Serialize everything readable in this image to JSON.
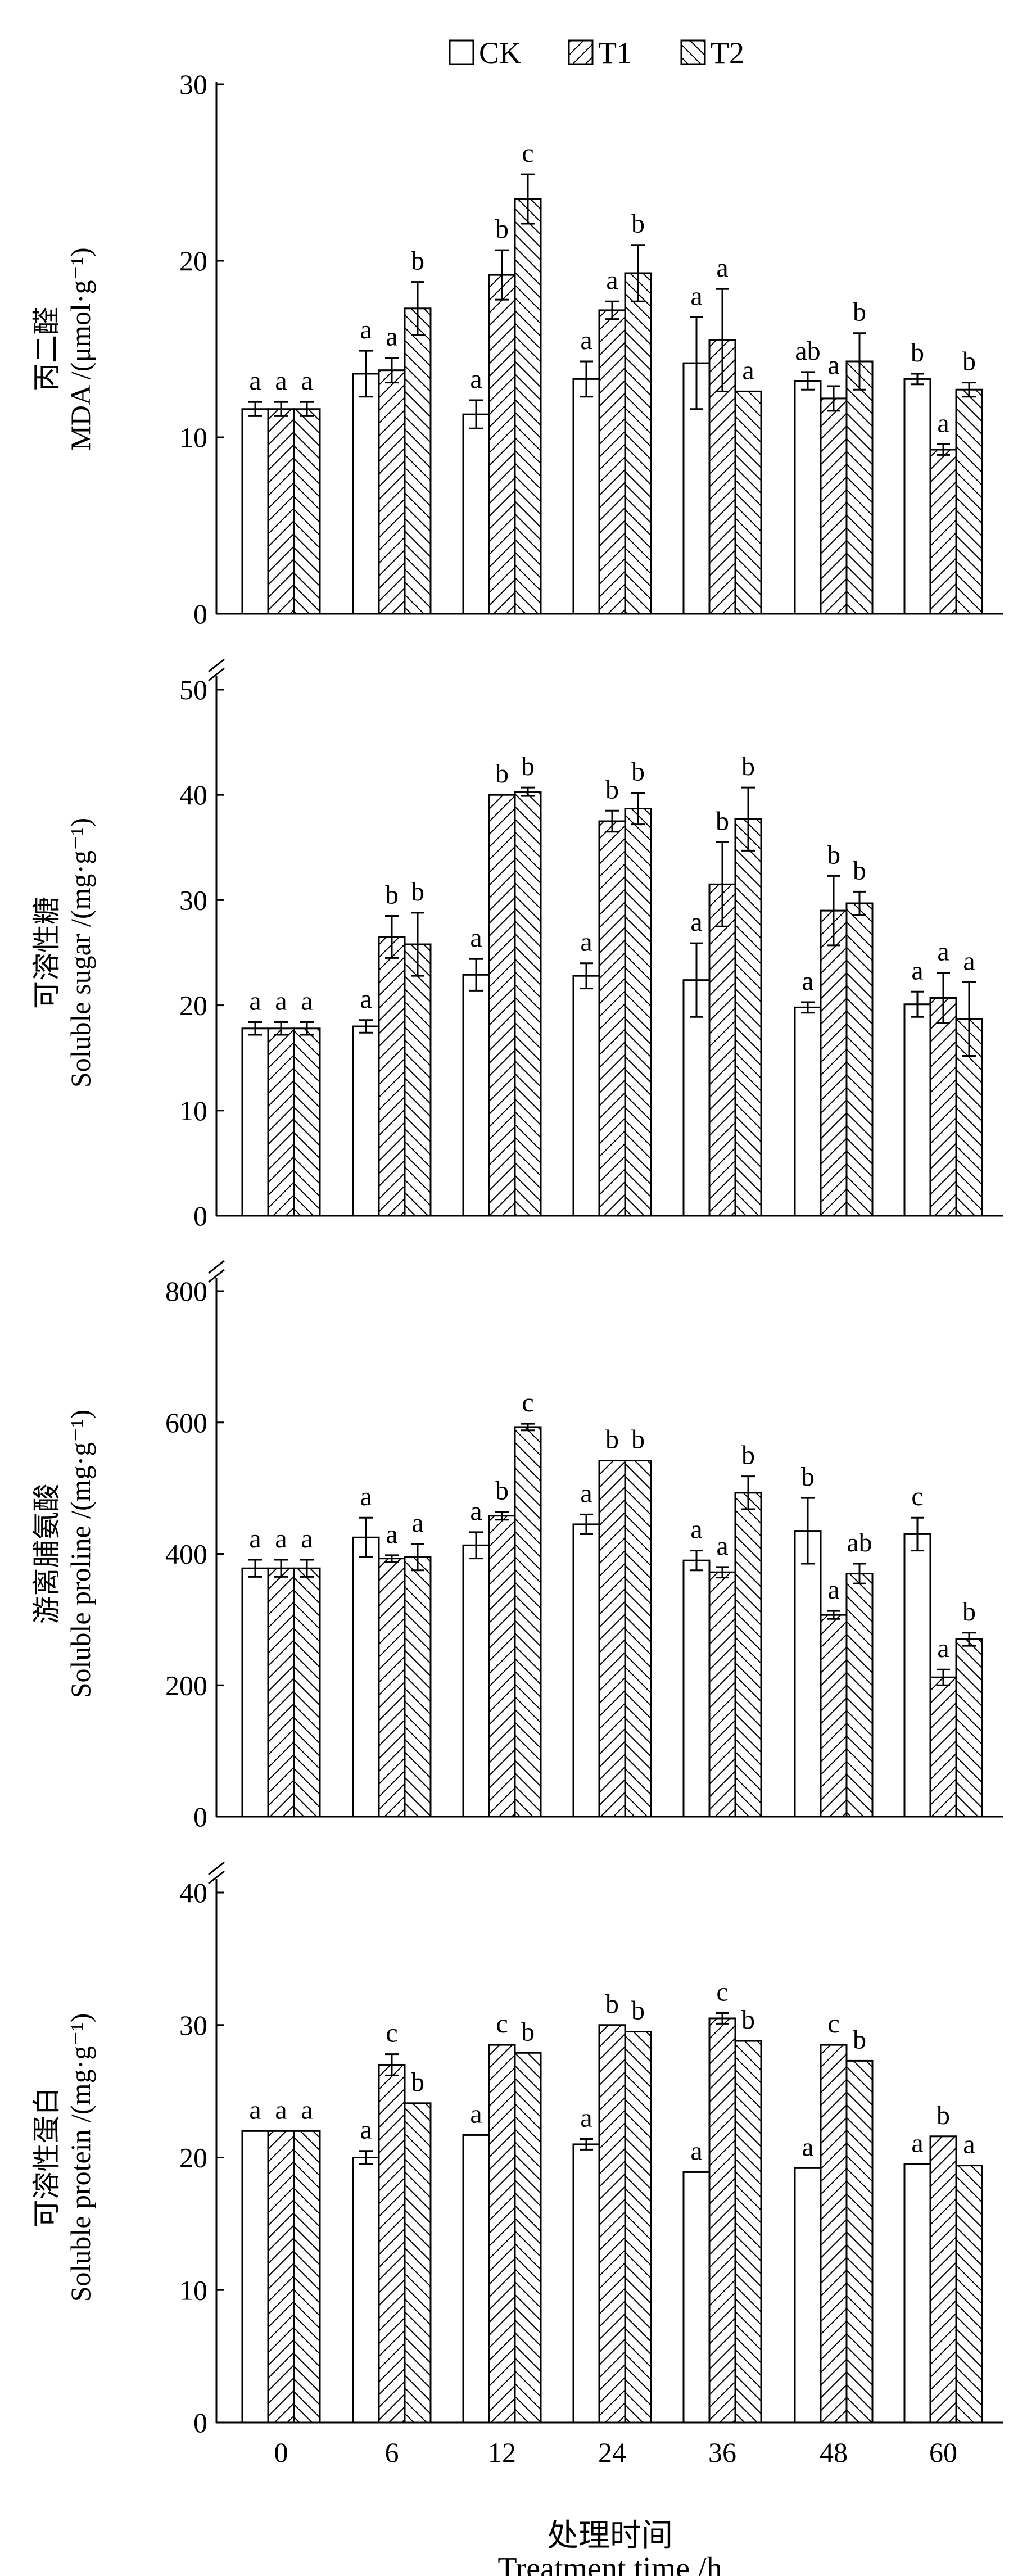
{
  "legend": [
    {
      "name": "CK",
      "pattern": "none"
    },
    {
      "name": "T1",
      "pattern": "hatch-forward"
    },
    {
      "name": "T2",
      "pattern": "hatch-backward"
    }
  ],
  "xaxis": {
    "title_cn": "处理时间",
    "title_en": "Treatment time /h",
    "ticks": [
      "0",
      "6",
      "12",
      "24",
      "36",
      "48",
      "60"
    ]
  },
  "colors": {
    "stroke": "#000000",
    "fill": "#ffffff"
  },
  "chart_data": [
    {
      "type": "bar",
      "ylabel_cn": "丙二醛",
      "ylabel_en": "MDA /(μmol·g⁻¹)",
      "ylim": [
        0,
        30
      ],
      "yticks": [
        "0",
        "10",
        "20",
        "30"
      ],
      "axis_break_top": false,
      "categories": [
        "0",
        "6",
        "12",
        "24",
        "36",
        "48",
        "60"
      ],
      "series": [
        {
          "name": "CK",
          "values": [
            11.6,
            13.6,
            11.3,
            13.3,
            14.2,
            13.2,
            13.3
          ],
          "errors": [
            0.4,
            1.3,
            0.8,
            1.0,
            2.6,
            0.5,
            0.3
          ],
          "labels": [
            "a",
            "a",
            "a",
            "a",
            "a",
            "ab",
            "b"
          ]
        },
        {
          "name": "T1",
          "values": [
            11.6,
            13.8,
            19.2,
            17.2,
            15.5,
            12.2,
            9.3
          ],
          "errors": [
            0.4,
            0.7,
            1.4,
            0.5,
            2.9,
            0.7,
            0.3
          ],
          "labels": [
            "a",
            "a",
            "b",
            "a",
            "a",
            "a",
            "a"
          ]
        },
        {
          "name": "T2",
          "values": [
            11.6,
            17.3,
            23.5,
            19.3,
            12.6,
            14.3,
            12.7
          ],
          "errors": [
            0.4,
            1.5,
            1.4,
            1.6,
            0,
            1.6,
            0.4
          ],
          "labels": [
            "a",
            "b",
            "c",
            "b",
            "a",
            "b",
            "b"
          ]
        }
      ]
    },
    {
      "type": "bar",
      "ylabel_cn": "可溶性糖",
      "ylabel_en": "Soluble sugar /(mg·g⁻¹)",
      "ylim": [
        0,
        50
      ],
      "yticks": [
        "0",
        "10",
        "20",
        "30",
        "40",
        "50"
      ],
      "axis_break_top": true,
      "categories": [
        "0",
        "6",
        "12",
        "24",
        "36",
        "48",
        "60"
      ],
      "series": [
        {
          "name": "CK",
          "values": [
            17.8,
            18.0,
            22.9,
            22.8,
            22.4,
            19.8,
            20.1
          ],
          "errors": [
            0.6,
            0.6,
            1.5,
            1.2,
            3.5,
            0.5,
            1.2
          ],
          "labels": [
            "a",
            "a",
            "a",
            "a",
            "a",
            "a",
            "a"
          ]
        },
        {
          "name": "T1",
          "values": [
            17.8,
            26.5,
            40.0,
            37.5,
            31.5,
            29.0,
            20.7
          ],
          "errors": [
            0.6,
            2.0,
            0,
            1.0,
            4.0,
            3.3,
            2.4
          ],
          "labels": [
            "a",
            "b",
            "b",
            "b",
            "b",
            "b",
            "a"
          ]
        },
        {
          "name": "T2",
          "values": [
            17.8,
            25.8,
            40.3,
            38.7,
            37.7,
            29.7,
            18.7
          ],
          "errors": [
            0.6,
            3.0,
            0.4,
            1.5,
            3.0,
            1.1,
            3.5
          ],
          "labels": [
            "a",
            "b",
            "b",
            "b",
            "b",
            "b",
            "a"
          ]
        }
      ]
    },
    {
      "type": "bar",
      "ylabel_cn": "游离脯氨酸",
      "ylabel_en": "Soluble proline /(mg·g⁻¹)",
      "ylim": [
        0,
        800
      ],
      "yticks": [
        "0",
        "200",
        "400",
        "600",
        "800"
      ],
      "axis_break_top": true,
      "categories": [
        "0",
        "6",
        "12",
        "24",
        "36",
        "48",
        "60"
      ],
      "series": [
        {
          "name": "CK",
          "values": [
            378,
            425,
            413,
            445,
            390,
            435,
            430
          ],
          "errors": [
            13,
            30,
            20,
            15,
            15,
            50,
            25
          ],
          "labels": [
            "a",
            "a",
            "a",
            "a",
            "a",
            "b",
            "c"
          ]
        },
        {
          "name": "T1",
          "values": [
            378,
            393,
            458,
            542,
            372,
            307,
            212
          ],
          "errors": [
            13,
            5,
            6,
            0,
            8,
            6,
            12
          ],
          "labels": [
            "a",
            "a",
            "b",
            "b",
            "a",
            "a",
            "a"
          ]
        },
        {
          "name": "T2",
          "values": [
            378,
            395,
            593,
            542,
            493,
            370,
            270
          ],
          "errors": [
            13,
            20,
            5,
            0,
            25,
            15,
            10
          ],
          "labels": [
            "a",
            "a",
            "c",
            "b",
            "b",
            "ab",
            "b"
          ]
        }
      ]
    },
    {
      "type": "bar",
      "ylabel_cn": "可溶性蛋白",
      "ylabel_en": "Soluble protein /(mg·g⁻¹)",
      "ylim": [
        0,
        40
      ],
      "yticks": [
        "0",
        "10",
        "20",
        "30",
        "40"
      ],
      "axis_break_top": true,
      "categories": [
        "0",
        "6",
        "12",
        "24",
        "36",
        "48",
        "60"
      ],
      "series": [
        {
          "name": "CK",
          "values": [
            22.0,
            20.0,
            21.7,
            21.0,
            18.9,
            19.2,
            19.5
          ],
          "errors": [
            0,
            0.5,
            0,
            0.4,
            0,
            0,
            0
          ],
          "labels": [
            "a",
            "a",
            "a",
            "a",
            "a",
            "a",
            "a"
          ]
        },
        {
          "name": "T1",
          "values": [
            22.0,
            27.0,
            28.5,
            30.0,
            30.5,
            28.5,
            21.6
          ],
          "errors": [
            0,
            0.8,
            0,
            0,
            0.4,
            0,
            0
          ],
          "labels": [
            "a",
            "c",
            "c",
            "b",
            "c",
            "c",
            "b"
          ]
        },
        {
          "name": "T2",
          "values": [
            22.0,
            24.1,
            27.9,
            29.5,
            28.8,
            27.3,
            19.4
          ],
          "errors": [
            0,
            0,
            0,
            0,
            0,
            0,
            0
          ],
          "labels": [
            "a",
            "b",
            "b",
            "b",
            "b",
            "b",
            "a"
          ]
        }
      ]
    }
  ]
}
